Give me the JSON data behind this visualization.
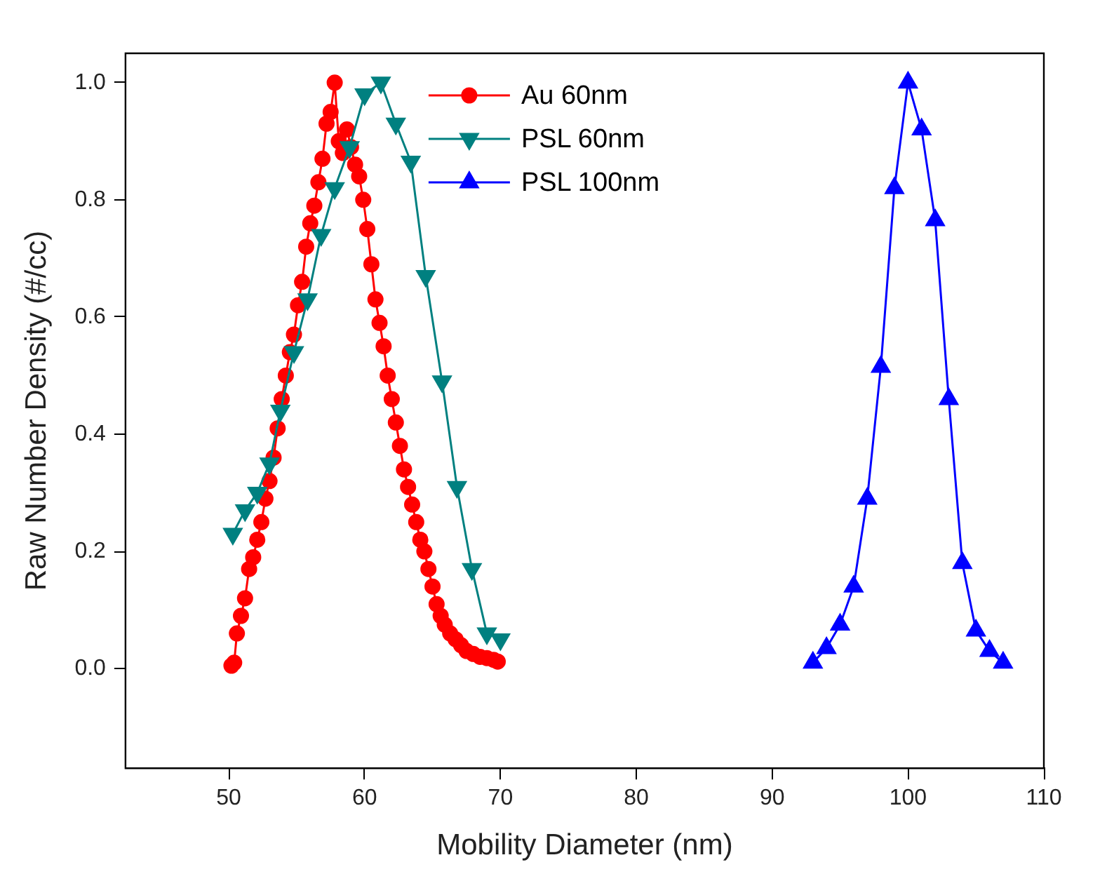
{
  "chart_data": {
    "type": "line",
    "xlabel": "Mobility Diameter (nm)",
    "ylabel": "Raw Number Density (#/cc)",
    "xlim": [
      42.4,
      110
    ],
    "xticks": [
      50,
      60,
      70,
      80,
      90,
      100,
      110
    ],
    "ylim": [
      -0.17,
      1.05
    ],
    "yticks": [
      {
        "value": 0,
        "label": "0.0"
      },
      {
        "value": 0.2,
        "label": "0.2"
      },
      {
        "value": 0.4,
        "label": "0.4"
      },
      {
        "value": 0.6,
        "label": "0.6"
      },
      {
        "value": 0.8,
        "label": "0.8"
      },
      {
        "value": 1,
        "label": "1.0"
      }
    ],
    "grid": false,
    "legend": "top",
    "line_style": "solid",
    "series": [
      {
        "name": "Au 60nm",
        "color": "#ff0000",
        "marker": "circle",
        "x": [
          50.2,
          50.4,
          50.6,
          50.9,
          51.2,
          51.5,
          51.8,
          52.1,
          52.4,
          52.7,
          53.0,
          53.3,
          53.6,
          53.9,
          54.2,
          54.5,
          54.8,
          55.1,
          55.4,
          55.7,
          56.0,
          56.3,
          56.6,
          56.9,
          57.2,
          57.5,
          57.8,
          58.1,
          58.4,
          58.7,
          59.0,
          59.3,
          59.6,
          59.9,
          60.2,
          60.5,
          60.8,
          61.1,
          61.4,
          61.7,
          62.0,
          62.3,
          62.6,
          62.9,
          63.2,
          63.5,
          63.8,
          64.1,
          64.4,
          64.7,
          65.0,
          65.3,
          65.6,
          65.9,
          66.3,
          66.7,
          67.1,
          67.5,
          68.0,
          68.5,
          69.0,
          69.5,
          69.8
        ],
        "values": [
          0.005,
          0.01,
          0.06,
          0.09,
          0.12,
          0.17,
          0.19,
          0.22,
          0.25,
          0.29,
          0.32,
          0.36,
          0.41,
          0.46,
          0.5,
          0.54,
          0.57,
          0.62,
          0.66,
          0.72,
          0.76,
          0.79,
          0.83,
          0.87,
          0.93,
          0.95,
          1.0,
          0.9,
          0.88,
          0.92,
          0.89,
          0.86,
          0.84,
          0.8,
          0.75,
          0.69,
          0.63,
          0.59,
          0.55,
          0.5,
          0.46,
          0.42,
          0.38,
          0.34,
          0.31,
          0.28,
          0.25,
          0.22,
          0.2,
          0.17,
          0.14,
          0.11,
          0.09,
          0.075,
          0.06,
          0.05,
          0.04,
          0.03,
          0.025,
          0.02,
          0.018,
          0.015,
          0.012
        ]
      },
      {
        "name": "PSL 60nm",
        "color": "#008080",
        "marker": "triangle-down",
        "x": [
          50.3,
          51.2,
          52.1,
          53.0,
          53.8,
          54.8,
          55.8,
          56.8,
          57.8,
          58.9,
          60.0,
          61.2,
          62.3,
          63.4,
          64.5,
          65.7,
          66.8,
          67.9,
          69.0,
          70.0
        ],
        "values": [
          0.23,
          0.27,
          0.3,
          0.35,
          0.44,
          0.54,
          0.63,
          0.74,
          0.82,
          0.89,
          0.98,
          1.0,
          0.93,
          0.865,
          0.67,
          0.49,
          0.31,
          0.17,
          0.06,
          0.05
        ]
      },
      {
        "name": "PSL 100nm",
        "color": "#0000ff",
        "marker": "triangle",
        "x": [
          93,
          94,
          95,
          96,
          97,
          98,
          99,
          100,
          101,
          102,
          103,
          104,
          105,
          106,
          107
        ],
        "values": [
          0.01,
          0.035,
          0.075,
          0.14,
          0.29,
          0.515,
          0.82,
          1.0,
          0.92,
          0.765,
          0.46,
          0.18,
          0.065,
          0.03,
          0.01
        ]
      }
    ]
  }
}
